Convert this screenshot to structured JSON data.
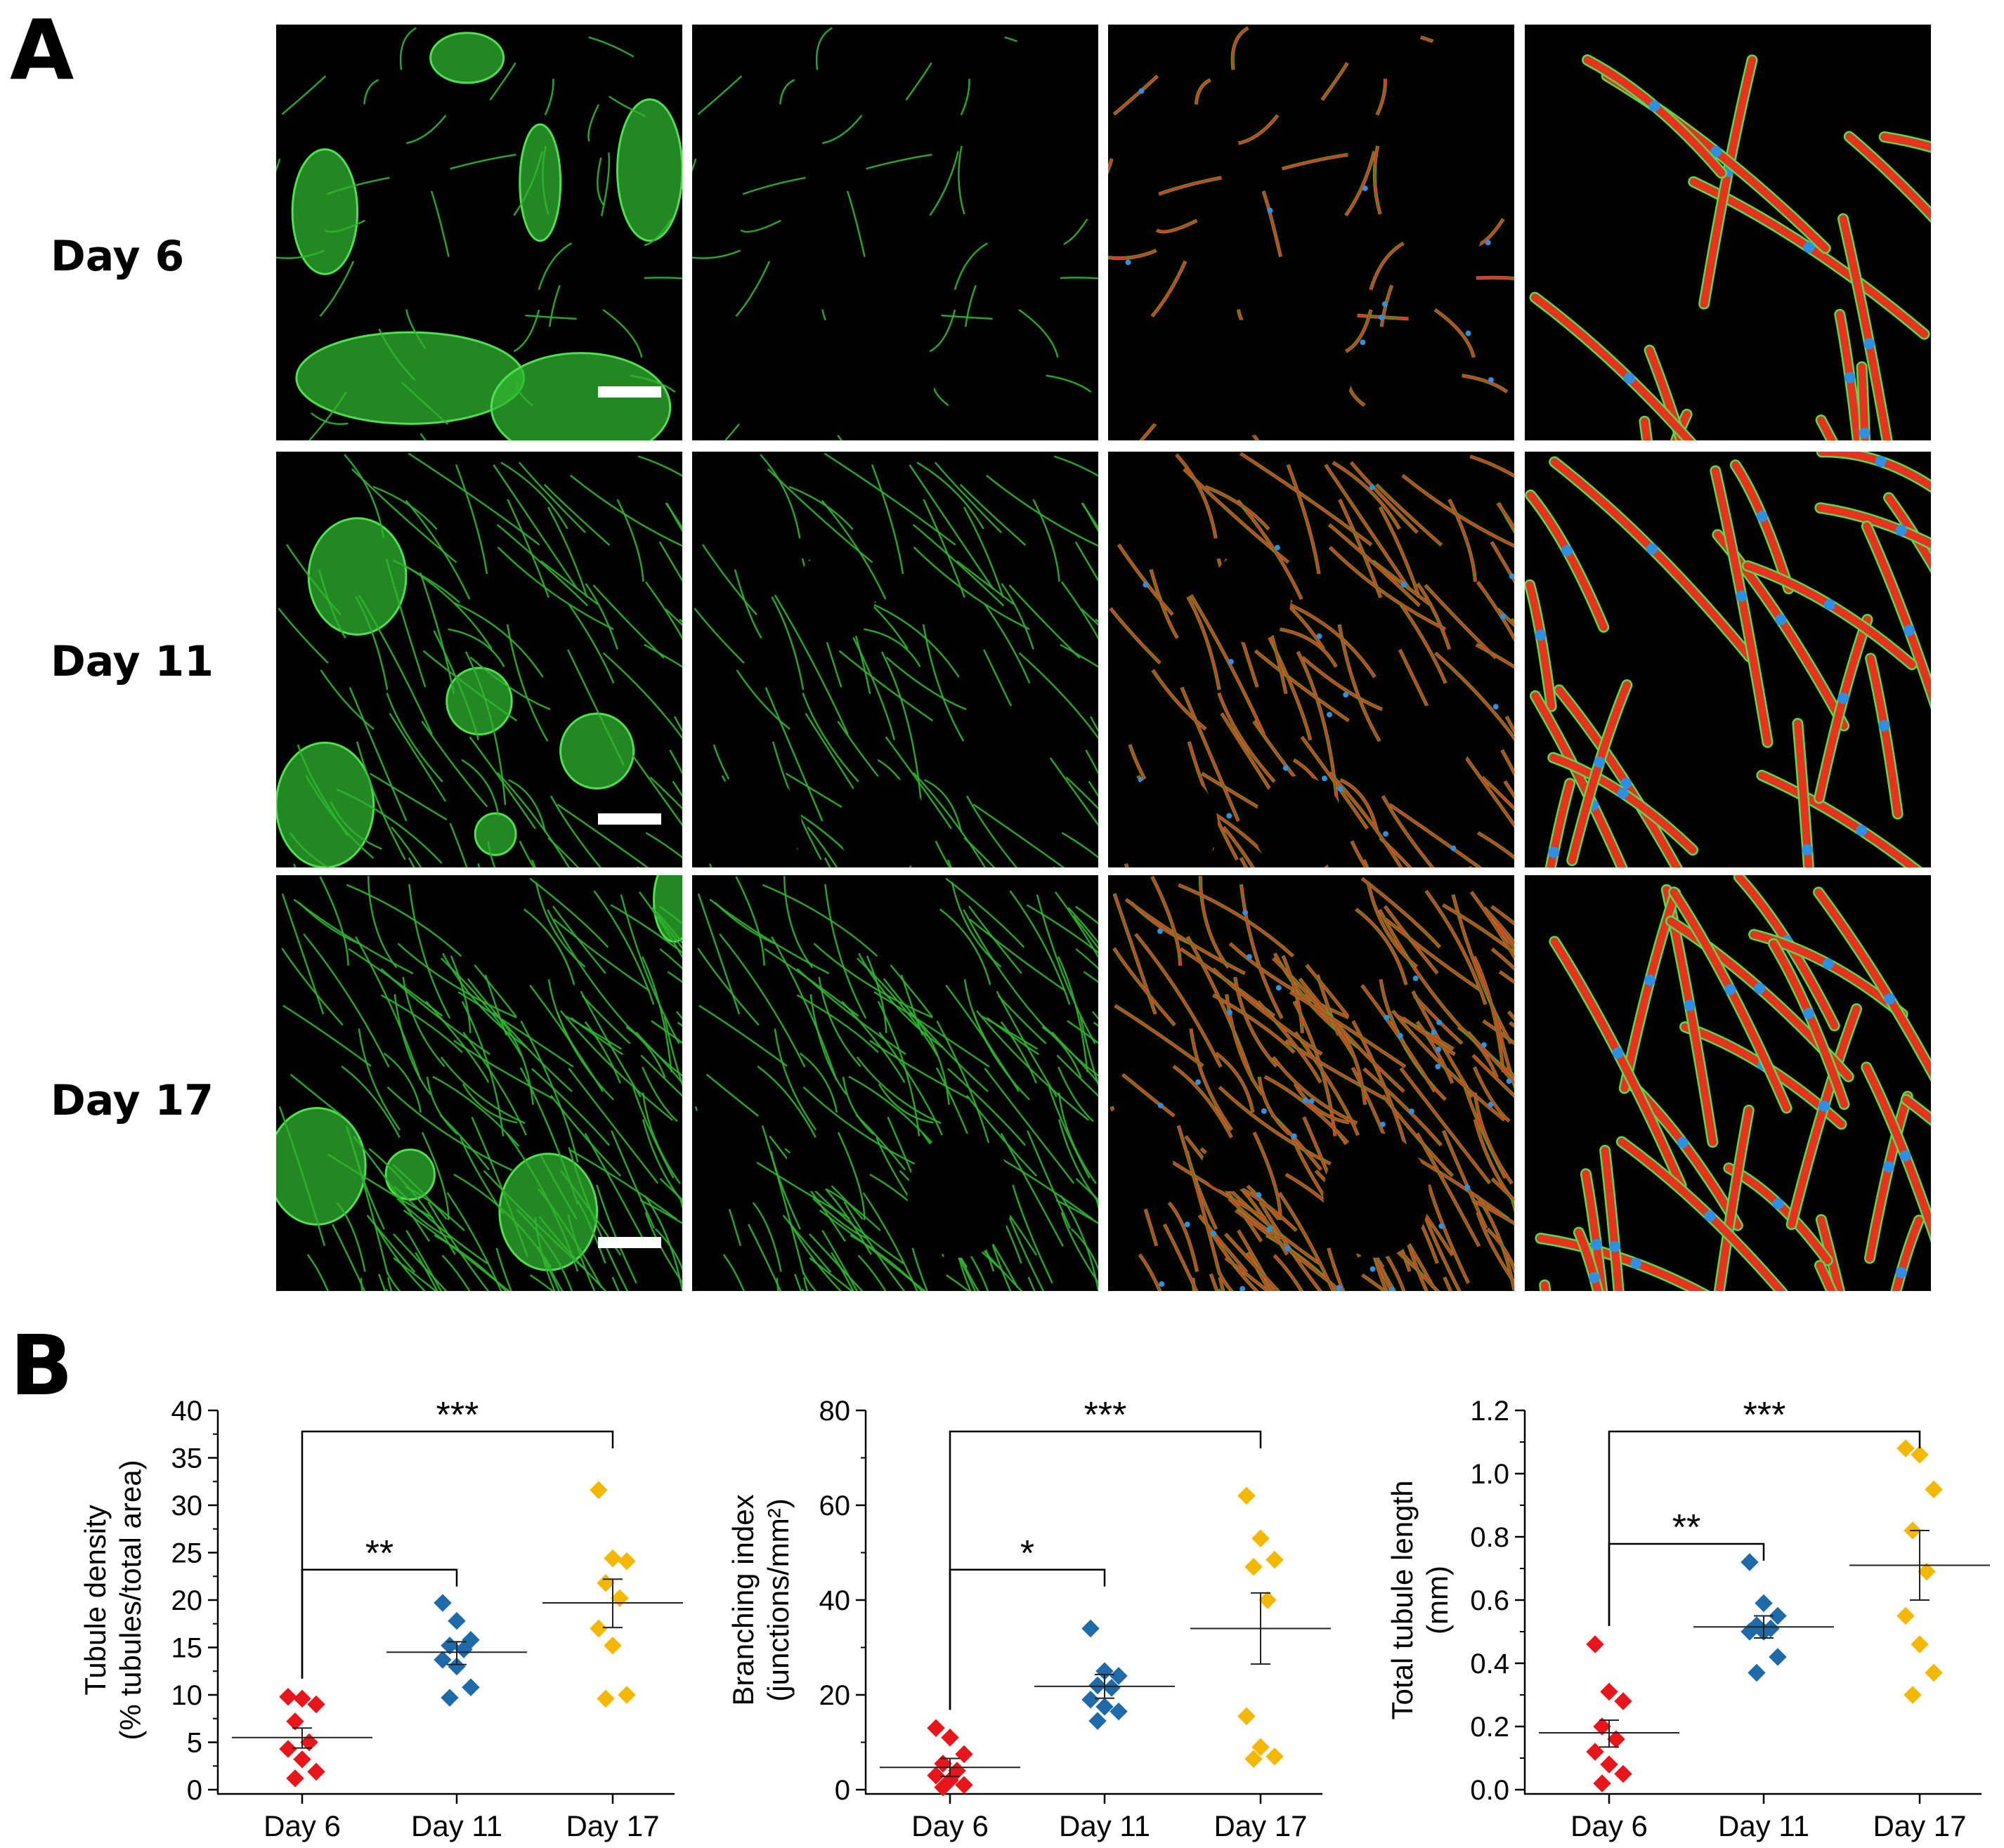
{
  "panel_a": {
    "letter": "A",
    "rows": [
      {
        "label": "Day 6",
        "density": 35,
        "blobs": "d6"
      },
      {
        "label": "Day 11",
        "density": 80,
        "blobs": "d11"
      },
      {
        "label": "Day 17",
        "density": 140,
        "blobs": "d17"
      }
    ],
    "colors": {
      "stain": "#2fb52f",
      "bright": "#4fe04f",
      "skeleton": "#e8321e",
      "junction": "#2f8fe0",
      "background": "#000000"
    }
  },
  "panel_b": {
    "letter": "B"
  },
  "chart_data": [
    {
      "type": "scatter",
      "categories": [
        "Day 6",
        "Day 11",
        "Day 17"
      ],
      "ylabel": "Tubule density (% tubules/total area)",
      "ylabel_lines": [
        "Tubule density",
        "(% tubules/total area)"
      ],
      "ylim": [
        0,
        40
      ],
      "yticks": [
        0,
        5,
        10,
        15,
        20,
        25,
        30,
        35,
        40
      ],
      "series": [
        {
          "category": "Day 6",
          "color": "#e8161b",
          "points": [
            9.8,
            9.6,
            9.0,
            7.2,
            5.0,
            4.3,
            3.2,
            1.9,
            1.2
          ],
          "mean": 5.5,
          "sem_low": 4.4,
          "sem_high": 6.5
        },
        {
          "category": "Day 11",
          "color": "#1f6aa8",
          "points": [
            19.7,
            17.8,
            15.8,
            15.2,
            14.8,
            13.7,
            13.0,
            10.8,
            9.7
          ],
          "mean": 14.5,
          "sem_low": 13.2,
          "sem_high": 15.6
        },
        {
          "category": "Day 17",
          "color": "#f5b800",
          "points": [
            31.6,
            24.4,
            24.1,
            21.8,
            20.2,
            17.0,
            15.2,
            10.0,
            9.6
          ],
          "mean": 19.7,
          "sem_low": 17.1,
          "sem_high": 22.2
        }
      ],
      "brackets": [
        {
          "from": "Day 6",
          "to": "Day 11",
          "label": "**"
        },
        {
          "from": "Day 6",
          "to": "Day 17",
          "label": "***"
        }
      ]
    },
    {
      "type": "scatter",
      "categories": [
        "Day 6",
        "Day 11",
        "Day 17"
      ],
      "ylabel": "Branching index (junctions/mm²)",
      "ylabel_lines": [
        "Branching index",
        "(junctions/mm²)"
      ],
      "ylim": [
        0,
        80
      ],
      "yticks": [
        0,
        20,
        40,
        60,
        80
      ],
      "series": [
        {
          "category": "Day 6",
          "color": "#e8161b",
          "points": [
            13.0,
            11.0,
            7.5,
            5.5,
            4.0,
            3.0,
            2.0,
            1.0,
            0.5
          ],
          "mean": 4.7,
          "sem_low": 2.8,
          "sem_high": 6.6
        },
        {
          "category": "Day 11",
          "color": "#1f6aa8",
          "points": [
            34.0,
            25.0,
            24.0,
            22.0,
            21.5,
            19.0,
            17.5,
            16.5,
            14.5
          ],
          "mean": 21.8,
          "sem_low": 19.3,
          "sem_high": 24.3
        },
        {
          "category": "Day 17",
          "color": "#f5b800",
          "points": [
            62.0,
            53.0,
            48.5,
            47.0,
            40.0,
            15.5,
            9.0,
            7.0,
            6.5
          ],
          "mean": 34.0,
          "sem_low": 26.5,
          "sem_high": 41.5
        }
      ],
      "brackets": [
        {
          "from": "Day 6",
          "to": "Day 11",
          "label": "*"
        },
        {
          "from": "Day 6",
          "to": "Day 17",
          "label": "***"
        }
      ]
    },
    {
      "type": "scatter",
      "categories": [
        "Day 6",
        "Day 11",
        "Day 17"
      ],
      "ylabel": "Total tubule length (mm)",
      "ylabel_lines": [
        "Total tubule length",
        "(mm)"
      ],
      "ylim": [
        0,
        1.2
      ],
      "yticks": [
        0.0,
        0.2,
        0.4,
        0.6,
        0.8,
        1.0,
        1.2
      ],
      "series": [
        {
          "category": "Day 6",
          "color": "#e8161b",
          "points": [
            0.46,
            0.31,
            0.28,
            0.2,
            0.16,
            0.12,
            0.08,
            0.05,
            0.02
          ],
          "mean": 0.18,
          "sem_low": 0.135,
          "sem_high": 0.22
        },
        {
          "category": "Day 11",
          "color": "#1f6aa8",
          "points": [
            0.72,
            0.59,
            0.55,
            0.52,
            0.51,
            0.5,
            0.5,
            0.42,
            0.37
          ],
          "mean": 0.515,
          "sem_low": 0.48,
          "sem_high": 0.55
        },
        {
          "category": "Day 17",
          "color": "#f5b800",
          "points": [
            1.08,
            1.06,
            0.95,
            0.82,
            0.69,
            0.55,
            0.46,
            0.37,
            0.3
          ],
          "mean": 0.71,
          "sem_low": 0.6,
          "sem_high": 0.82
        }
      ],
      "brackets": [
        {
          "from": "Day 6",
          "to": "Day 11",
          "label": "**"
        },
        {
          "from": "Day 6",
          "to": "Day 17",
          "label": "***"
        }
      ]
    }
  ]
}
